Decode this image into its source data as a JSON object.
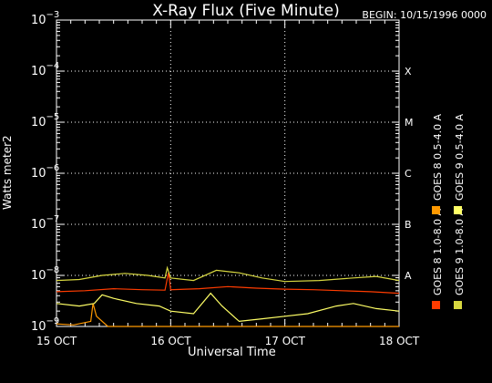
{
  "header": {
    "title": "X-Ray Flux (Five Minute)",
    "begin": "BEGIN: 10/15/1996 0000"
  },
  "chart_data": {
    "type": "line",
    "title": "X-Ray Flux (Five Minute)",
    "xlabel": "Universal Time",
    "ylabel": "Watts meter2",
    "x_ticks": [
      "15 OCT",
      "16 OCT",
      "17 OCT",
      "18 OCT"
    ],
    "x_range_days": [
      0,
      3
    ],
    "y_log": true,
    "y_exponent_range": [
      -9,
      -3
    ],
    "y_tick_exponents": [
      -9,
      -8,
      -7,
      -6,
      -5,
      -4,
      -3
    ],
    "flare_classes": [
      {
        "label": "X",
        "exp": -4
      },
      {
        "label": "M",
        "exp": -5
      },
      {
        "label": "C",
        "exp": -6
      },
      {
        "label": "B",
        "exp": -7
      },
      {
        "label": "A",
        "exp": -8
      }
    ],
    "grid": "dotted",
    "legend_position": "right, rotated",
    "series": [
      {
        "name": "GOES 8 1.0-8.0 A",
        "color": "#ff3c00",
        "points": [
          [
            0,
            -8.32
          ],
          [
            0.25,
            -8.3
          ],
          [
            0.5,
            -8.26
          ],
          [
            0.75,
            -8.28
          ],
          [
            0.95,
            -8.29
          ],
          [
            0.98,
            -7.95
          ],
          [
            0.99,
            -8.1
          ],
          [
            1.0,
            -8.28
          ],
          [
            1.25,
            -8.26
          ],
          [
            1.5,
            -8.22
          ],
          [
            1.75,
            -8.25
          ],
          [
            2.0,
            -8.27
          ],
          [
            2.25,
            -8.28
          ],
          [
            2.5,
            -8.3
          ],
          [
            2.75,
            -8.32
          ],
          [
            3.0,
            -8.35
          ]
        ]
      },
      {
        "name": "GOES 8 0.5-4.0 A",
        "color": "#ff9900",
        "points": [
          [
            0,
            -8.95
          ],
          [
            0.15,
            -8.97
          ],
          [
            0.3,
            -8.9
          ],
          [
            0.32,
            -8.55
          ],
          [
            0.35,
            -8.8
          ],
          [
            0.45,
            -9.0
          ],
          [
            0.6,
            -9.1
          ],
          [
            0.8,
            -9.2
          ],
          [
            1.0,
            -9.3
          ],
          [
            1.3,
            -9.45
          ],
          [
            1.6,
            -9.9
          ],
          [
            3.0,
            -9.9
          ]
        ]
      },
      {
        "name": "GOES 9 1.0-8.0 A",
        "color": "#d8d840",
        "points": [
          [
            0,
            -8.1
          ],
          [
            0.2,
            -8.08
          ],
          [
            0.4,
            -8.0
          ],
          [
            0.6,
            -7.96
          ],
          [
            0.8,
            -8.0
          ],
          [
            0.95,
            -8.05
          ],
          [
            0.97,
            -7.85
          ],
          [
            1.0,
            -8.05
          ],
          [
            1.2,
            -8.1
          ],
          [
            1.4,
            -7.9
          ],
          [
            1.6,
            -7.95
          ],
          [
            1.8,
            -8.05
          ],
          [
            2.0,
            -8.12
          ],
          [
            2.3,
            -8.1
          ],
          [
            2.6,
            -8.05
          ],
          [
            2.8,
            -8.02
          ],
          [
            3.0,
            -8.1
          ]
        ]
      },
      {
        "name": "GOES 9 0.5-4.0 A",
        "color": "#ffff66",
        "points": [
          [
            0,
            -8.55
          ],
          [
            0.2,
            -8.6
          ],
          [
            0.33,
            -8.55
          ],
          [
            0.4,
            -8.38
          ],
          [
            0.5,
            -8.45
          ],
          [
            0.7,
            -8.55
          ],
          [
            0.9,
            -8.6
          ],
          [
            1.0,
            -8.7
          ],
          [
            1.2,
            -8.75
          ],
          [
            1.35,
            -8.35
          ],
          [
            1.45,
            -8.6
          ],
          [
            1.6,
            -8.9
          ],
          [
            1.8,
            -8.85
          ],
          [
            2.0,
            -8.8
          ],
          [
            2.2,
            -8.75
          ],
          [
            2.45,
            -8.6
          ],
          [
            2.6,
            -8.55
          ],
          [
            2.8,
            -8.65
          ],
          [
            3.0,
            -8.7
          ]
        ]
      }
    ]
  }
}
